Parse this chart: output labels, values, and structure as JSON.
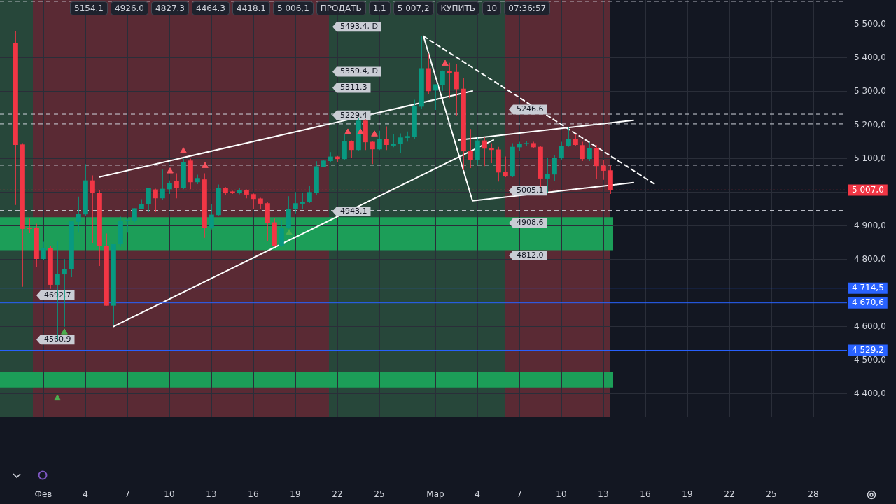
{
  "chart_data": {
    "type": "candlestick",
    "x": [
      "--01-30T00:00",
      "--01-30T12:00",
      "--01-31T00:00",
      "--01-31T12:00",
      "--02-01T00:00",
      "--02-01T12:00",
      "--02-02T00:00",
      "--02-02T12:00",
      "--02-03T00:00",
      "--02-03T12:00",
      "--02-04T00:00",
      "--02-04T12:00",
      "--02-05T00:00",
      "--02-05T12:00",
      "--02-06T00:00",
      "--02-06T12:00",
      "--02-07T00:00",
      "--02-07T12:00",
      "--02-08T00:00",
      "--02-08T12:00",
      "--02-09T00:00",
      "--02-09T12:00",
      "--02-10T00:00",
      "--02-10T12:00",
      "--02-11T00:00",
      "--02-11T12:00",
      "--02-12T00:00",
      "--02-12T12:00",
      "--02-13T00:00",
      "--02-13T12:00",
      "--02-14T00:00",
      "--02-14T12:00",
      "--02-15T00:00",
      "--02-15T12:00",
      "--02-16T00:00",
      "--02-16T12:00",
      "--02-17T00:00",
      "--02-17T12:00",
      "--02-18T00:00",
      "--02-18T12:00",
      "--02-19T00:00",
      "--02-19T12:00",
      "--02-20T00:00",
      "--02-20T12:00",
      "--02-21T00:00",
      "--02-21T12:00",
      "--02-22T00:00",
      "--02-22T12:00",
      "--02-23T00:00",
      "--02-23T12:00",
      "--02-24T00:00",
      "--02-24T12:00",
      "--02-25T00:00",
      "--02-25T12:00",
      "--02-26T00:00",
      "--02-26T12:00",
      "--02-27T00:00",
      "--02-27T12:00",
      "--02-28T00:00",
      "--02-28T12:00",
      "--03-01T00:00",
      "--03-01T12:00",
      "--03-02T00:00",
      "--03-02T12:00",
      "--03-03T00:00",
      "--03-03T12:00",
      "--03-04T00:00",
      "--03-04T12:00",
      "--03-05T00:00",
      "--03-05T12:00",
      "--03-06T00:00",
      "--03-06T12:00",
      "--03-07T00:00",
      "--03-07T12:00",
      "--03-08T00:00",
      "--03-08T12:00",
      "--03-09T00:00",
      "--03-09T12:00",
      "--03-10T00:00",
      "--03-10T12:00",
      "--03-11T00:00",
      "--03-11T12:00",
      "--03-12T00:00",
      "--03-12T12:00",
      "--03-13T00:00",
      "--03-13T12:00"
    ],
    "ohlc": [
      [
        5444,
        5479,
        4963,
        5142
      ],
      [
        5142,
        5146,
        4719,
        4892
      ],
      [
        4894,
        4921,
        4879,
        4892
      ],
      [
        4894,
        4906,
        4777,
        4802
      ],
      [
        4802,
        4852,
        4800,
        4833
      ],
      [
        4833,
        4840,
        4713,
        4725
      ],
      [
        4725,
        4854,
        4561,
        4756
      ],
      [
        4756,
        4800,
        4600,
        4771
      ],
      [
        4771,
        4913,
        4748,
        4913
      ],
      [
        4913,
        4987,
        4881,
        4935
      ],
      [
        4935,
        5083,
        4930,
        5035
      ],
      [
        5035,
        5050,
        4850,
        4998
      ],
      [
        4998,
        5006,
        4781,
        4840
      ],
      [
        4840,
        4877,
        4663,
        4663
      ],
      [
        4663,
        4846,
        4604,
        4846
      ],
      [
        4846,
        4927,
        4838,
        4915
      ],
      [
        4915,
        4921,
        4881,
        4917
      ],
      [
        4917,
        4952,
        4910,
        4952
      ],
      [
        4952,
        4979,
        4950,
        4965
      ],
      [
        4965,
        5013,
        4942,
        5013
      ],
      [
        5008,
        5010,
        4942,
        4983
      ],
      [
        4983,
        5067,
        4979,
        5010
      ],
      [
        5010,
        5035,
        4996,
        5027
      ],
      [
        5033,
        5056,
        4983,
        5013
      ],
      [
        5013,
        5100,
        5010,
        5090
      ],
      [
        5094,
        5100,
        5010,
        5031
      ],
      [
        5031,
        5052,
        5025,
        5042
      ],
      [
        5038,
        5056,
        4865,
        4894
      ],
      [
        4894,
        4965,
        4890,
        4933
      ],
      [
        4933,
        5023,
        4930,
        5013
      ],
      [
        5013,
        5015,
        4994,
        4998
      ],
      [
        5002,
        5004,
        4996,
        4998
      ],
      [
        4998,
        5013,
        4995,
        5006
      ],
      [
        5006,
        5008,
        4983,
        4994
      ],
      [
        4994,
        4996,
        4952,
        4981
      ],
      [
        4981,
        4983,
        4952,
        4967
      ],
      [
        4967,
        4970,
        4854,
        4910
      ],
      [
        4910,
        4921,
        4838,
        4840
      ],
      [
        4840,
        4917,
        4838,
        4894
      ],
      [
        4894,
        4988,
        4890,
        4950
      ],
      [
        4950,
        5000,
        4938,
        4967
      ],
      [
        4967,
        4998,
        4952,
        4971
      ],
      [
        4971,
        5019,
        4969,
        5000
      ],
      [
        5000,
        5092,
        4994,
        5077
      ],
      [
        5077,
        5096,
        5075,
        5094
      ],
      [
        5094,
        5119,
        5092,
        5106
      ],
      [
        5106,
        5108,
        5090,
        5100
      ],
      [
        5100,
        5173,
        5098,
        5152
      ],
      [
        5152,
        5154,
        5104,
        5127
      ],
      [
        5127,
        5221,
        5125,
        5213
      ],
      [
        5213,
        5217,
        5127,
        5150
      ],
      [
        5150,
        5152,
        5085,
        5129
      ],
      [
        5129,
        5183,
        5127,
        5158
      ],
      [
        5158,
        5196,
        5127,
        5142
      ],
      [
        5140,
        5173,
        5135,
        5144
      ],
      [
        5144,
        5175,
        5119,
        5163
      ],
      [
        5163,
        5181,
        5152,
        5167
      ],
      [
        5167,
        5275,
        5160,
        5256
      ],
      [
        5256,
        5465,
        5250,
        5369
      ],
      [
        5369,
        5413,
        5292,
        5302
      ],
      [
        5304,
        5321,
        5246,
        5321
      ],
      [
        5321,
        5362,
        5302,
        5360
      ],
      [
        5360,
        5385,
        5281,
        5356
      ],
      [
        5358,
        5381,
        5229,
        5308
      ],
      [
        5308,
        5340,
        5067,
        5123
      ],
      [
        5123,
        5188,
        5073,
        5098
      ],
      [
        5098,
        5163,
        5083,
        5154
      ],
      [
        5154,
        5163,
        5079,
        5131
      ],
      [
        5131,
        5146,
        5088,
        5127
      ],
      [
        5127,
        5135,
        5033,
        5060
      ],
      [
        5060,
        5106,
        5046,
        5048
      ],
      [
        5048,
        5146,
        5046,
        5135
      ],
      [
        5135,
        5150,
        5125,
        5144
      ],
      [
        5144,
        5152,
        5140,
        5146
      ],
      [
        5146,
        5150,
        5133,
        5135
      ],
      [
        5135,
        5137,
        5017,
        5042
      ],
      [
        5042,
        5102,
        5000,
        5054
      ],
      [
        5054,
        5110,
        5035,
        5102
      ],
      [
        5102,
        5150,
        5096,
        5138
      ],
      [
        5138,
        5194,
        5136,
        5158
      ],
      [
        5158,
        5173,
        5140,
        5142
      ],
      [
        5140,
        5150,
        5094,
        5100
      ],
      [
        5100,
        5148,
        5094,
        5131
      ],
      [
        5131,
        5140,
        5040,
        5079
      ],
      [
        5079,
        5096,
        5038,
        5065
      ],
      [
        5065,
        5079,
        4996,
        5007
      ]
    ],
    "colors": [
      "#f23645",
      "#f23645",
      "#f23645",
      "#f23645",
      "#089981",
      "#f23645",
      "#089981",
      "#089981",
      "#089981",
      "#089981",
      "#089981",
      "#f23645",
      "#f23645",
      "#f23645",
      "#089981",
      "#089981",
      "#089981",
      "#089981",
      "#089981",
      "#089981",
      "#f23645",
      "#089981",
      "#089981",
      "#f23645",
      "#089981",
      "#f23645",
      "#089981",
      "#f23645",
      "#089981",
      "#089981",
      "#f23645",
      "#f23645",
      "#089981",
      "#f23645",
      "#f23645",
      "#f23645",
      "#f23645",
      "#f23645",
      "#089981",
      "#089981",
      "#089981",
      "#089981",
      "#089981",
      "#089981",
      "#089981",
      "#089981",
      "#f23645",
      "#089981",
      "#f23645",
      "#089981",
      "#f23645",
      "#f23645",
      "#089981",
      "#f23645",
      "#089981",
      "#089981",
      "#089981",
      "#089981",
      "#089981",
      "#f23645",
      "#089981",
      "#089981",
      "#f23645",
      "#f23645",
      "#f23645",
      "#f23645",
      "#089981",
      "#f23645",
      "#f23645",
      "#f23645",
      "#f23645",
      "#089981",
      "#089981",
      "#089981",
      "#f23645",
      "#f23645",
      "#089981",
      "#089981",
      "#089981",
      "#089981",
      "#f23645",
      "#f23645",
      "#089981",
      "#f23645",
      "#f23645",
      "#f23645"
    ],
    "series": [
      {
        "type": "line",
        "color": "#ffffff",
        "marker": "none",
        "line_style": "solid",
        "x": [
          "--02-05T00:00",
          "--03-03T15:36"
        ],
        "values": [
          5046,
          5302
        ]
      },
      {
        "type": "line",
        "color": "#ffffff",
        "marker": "none",
        "line_style": "solid",
        "x": [
          "--02-06T00:00",
          "--03-05T03:36"
        ],
        "values": [
          4600,
          5156
        ]
      },
      {
        "type": "line",
        "color": "#ffffff",
        "marker": "none",
        "line_style": "solid",
        "x": [
          "--02-28T03:36",
          "--03-03T15:36",
          "--03-15T03:36"
        ],
        "values": [
          5465,
          4975,
          5029
        ]
      },
      {
        "type": "line",
        "color": "#ffffff",
        "marker": "none",
        "line_style": "solid",
        "x": [
          "--03-02T15:36",
          "--03-15T03:36"
        ],
        "values": [
          5156,
          5215
        ]
      },
      {
        "type": "line",
        "color": "#ffffff",
        "marker": "none",
        "line_style": "dashed",
        "x": [
          "--02-28T03:36",
          "--03-16T15:36"
        ],
        "values": [
          5465,
          5025
        ]
      },
      {
        "type": "scatter",
        "color": "#f7525f",
        "marker": "triangle",
        "x": [
          "--02-10T01:12",
          "--02-11T00:00",
          "--02-12T13:12",
          "--02-22T18:00",
          "--02-23T15:36",
          "--02-24T15:36",
          "--03-01T16:48"
        ],
        "values": [
          5063,
          5123,
          5079,
          5179,
          5179,
          5173,
          5383
        ]
      },
      {
        "type": "scatter",
        "color": "#4caf50",
        "marker": "triangle",
        "x": [
          "--02-02T00:00",
          "--02-02T12:00",
          "--02-18T13:12"
        ],
        "values": [
          4386,
          4583,
          4879
        ]
      }
    ],
    "xlim": [
      "--01-28T21:36",
      "--03-30T09:36"
    ],
    "xticks": [
      {
        "value": "--02-01",
        "label": "Фев"
      },
      {
        "value": "--02-04",
        "label": "4"
      },
      {
        "value": "--02-07",
        "label": "7"
      },
      {
        "value": "--02-10",
        "label": "10"
      },
      {
        "value": "--02-13",
        "label": "13"
      },
      {
        "value": "--02-16",
        "label": "16"
      },
      {
        "value": "--02-19",
        "label": "19"
      },
      {
        "value": "--02-22",
        "label": "22"
      },
      {
        "value": "--02-25",
        "label": "25"
      },
      {
        "value": "--03-01",
        "label": "Мар"
      },
      {
        "value": "--03-04",
        "label": "4"
      },
      {
        "value": "--03-07",
        "label": "7"
      },
      {
        "value": "--03-10",
        "label": "10"
      },
      {
        "value": "--03-13",
        "label": "13"
      },
      {
        "value": "--03-16",
        "label": "16"
      },
      {
        "value": "--03-19",
        "label": "19"
      },
      {
        "value": "--03-22",
        "label": "22"
      },
      {
        "value": "--03-25",
        "label": "25"
      },
      {
        "value": "--03-28",
        "label": "28"
      }
    ],
    "ylim": [
      4330,
      5573
    ],
    "yticks": [
      {
        "value": 4400,
        "label": "4 400,0"
      },
      {
        "value": 4500,
        "label": "4 500,0"
      },
      {
        "value": 4600,
        "label": "4 600,0"
      },
      {
        "value": 4700,
        "label": null
      },
      {
        "value": 4800,
        "label": "4 800,0"
      },
      {
        "value": 4900,
        "label": "4 900,0"
      },
      {
        "value": 5000,
        "label": null
      },
      {
        "value": 5100,
        "label": "5 100,0"
      },
      {
        "value": 5200,
        "label": "5 200,0"
      },
      {
        "value": 5300,
        "label": "5 300,0"
      },
      {
        "value": 5400,
        "label": "5 400,0"
      },
      {
        "value": 5500,
        "label": "5 500,0"
      }
    ],
    "grid": true,
    "bands": [
      {
        "axis": "x",
        "from": "--01-28T21:36",
        "to": "--01-31T06:00",
        "color": "#27473a"
      },
      {
        "axis": "x",
        "from": "--01-31T06:00",
        "to": "--02-21T09:36",
        "color": "#5a2a34"
      },
      {
        "axis": "x",
        "from": "--02-21T09:36",
        "to": "--03-06T00:00",
        "color": "#27473a"
      },
      {
        "axis": "x",
        "from": "--03-06T00:00",
        "to": "--03-13T12:00",
        "color": "#5a2a34"
      },
      {
        "axis": "y",
        "from": 4827.3,
        "to": 4926.0,
        "color": "#1c9e58"
      },
      {
        "axis": "y",
        "from": 4418.1,
        "to": 4464.3,
        "color": "#1c9e58"
      }
    ],
    "ref_lines": [
      {
        "axis": "y",
        "value": 5569,
        "color": "#d1d4dc",
        "line_style": "dashed"
      },
      {
        "axis": "y",
        "value": 5233,
        "color": "#d1d4dc",
        "line_style": "dashed"
      },
      {
        "axis": "y",
        "value": 5204,
        "color": "#d1d4dc",
        "line_style": "dashed"
      },
      {
        "axis": "y",
        "value": 5081,
        "color": "#d1d4dc",
        "line_style": "dashed"
      },
      {
        "axis": "y",
        "value": 4946,
        "color": "#d1d4dc",
        "line_style": "dashed"
      },
      {
        "axis": "y",
        "value": 5007,
        "label": "5 007,0",
        "color": "#f23645",
        "line_style": "dotted"
      },
      {
        "axis": "y",
        "value": 4714.5,
        "label": "4 714,5",
        "color": "#2962ff",
        "line_style": "solid"
      },
      {
        "axis": "y",
        "value": 4670.6,
        "label": "4 670,6",
        "color": "#2962ff",
        "line_style": "solid"
      },
      {
        "axis": "y",
        "value": 4529.2,
        "label": "4 529,2",
        "color": "#2962ff",
        "line_style": "solid"
      }
    ],
    "annotations": [
      {
        "text": "5493.4, D",
        "x": "--02-21T15:36",
        "y": 5493.4
      },
      {
        "text": "5359.4, D",
        "x": "--02-21T15:36",
        "y": 5359.4
      },
      {
        "text": "5311.3",
        "x": "--02-21T15:36",
        "y": 5311.3
      },
      {
        "text": "5229.4",
        "x": "--02-21T15:36",
        "y": 5229.4
      },
      {
        "text": "4943.1",
        "x": "--02-21T15:36",
        "y": 4943.1
      },
      {
        "text": "4692.7",
        "x": "--01-31T12:00",
        "y": 4692.7
      },
      {
        "text": "4560.9",
        "x": "--01-31T12:00",
        "y": 4560.9
      },
      {
        "text": "5246.6",
        "x": "--03-06T06:00",
        "y": 5246.6
      },
      {
        "text": "5005.1",
        "x": "--03-06T06:00",
        "y": 5005.1
      },
      {
        "text": "4908.6",
        "x": "--03-06T06:00",
        "y": 4908.6
      },
      {
        "text": "4812.0",
        "x": "--03-06T06:00",
        "y": 4812.0
      },
      "5154.1",
      "4926.0",
      "4827.3",
      "4464.3",
      "4418.1",
      "5 006,1",
      "ПРОДАТЬ",
      "1,1",
      "5 007,2",
      "КУПИТЬ",
      "10",
      "07:36:57"
    ]
  }
}
